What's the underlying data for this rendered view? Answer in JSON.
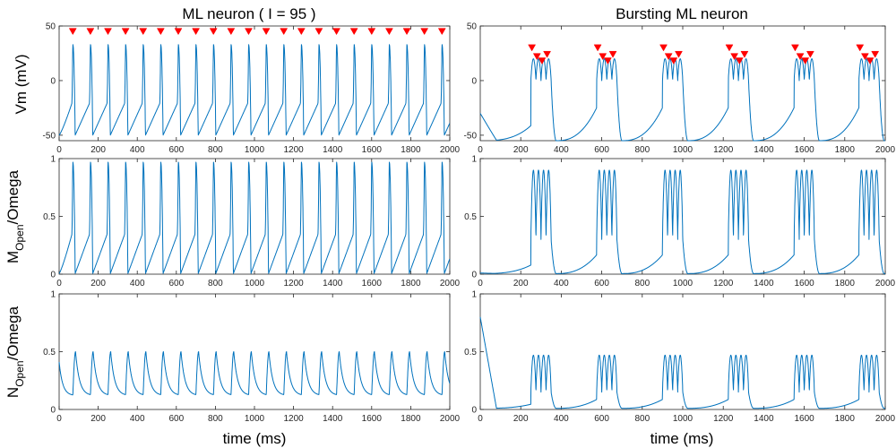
{
  "colors": {
    "trace": "#0072BD",
    "spike_marker": "#FF0000",
    "axes": "#262626"
  },
  "columns": [
    {
      "title": "ML neuron ( I = 95 )"
    },
    {
      "title": "Bursting ML neuron"
    }
  ],
  "rows": [
    {
      "ylabel": "Vm (mV)"
    },
    {
      "ylabel_main": "M",
      "ylabel_sub": "Open",
      "ylabel_suffix": "/Omega"
    },
    {
      "ylabel_main": "N",
      "ylabel_sub": "Open",
      "ylabel_suffix": "/Omega"
    }
  ],
  "xlabel": "time (ms)",
  "chart_data": [
    {
      "id": "vm-regular",
      "type": "line",
      "row": 0,
      "col": 0,
      "title": "ML neuron ( I = 95 )",
      "xlabel": "",
      "ylabel": "Vm (mV)",
      "xlim": [
        0,
        2000
      ],
      "ylim": [
        -55,
        50
      ],
      "xticks": [
        0,
        200,
        400,
        600,
        800,
        1000,
        1200,
        1400,
        1600,
        1800,
        2000
      ],
      "yticks": [
        -50,
        0,
        50
      ],
      "series": [
        {
          "model": "regular",
          "resting": -50,
          "peak": 33,
          "spike_times": [
            70,
            160,
            250,
            340,
            430,
            520,
            610,
            700,
            790,
            880,
            970,
            1060,
            1150,
            1240,
            1330,
            1420,
            1510,
            1600,
            1690,
            1780,
            1870,
            1960
          ]
        }
      ],
      "markers": {
        "shape": "triangle-down",
        "y": 45,
        "x": [
          70,
          160,
          250,
          340,
          430,
          520,
          610,
          700,
          790,
          880,
          970,
          1060,
          1150,
          1240,
          1330,
          1420,
          1510,
          1600,
          1690,
          1780,
          1870,
          1960
        ]
      }
    },
    {
      "id": "vm-bursting",
      "type": "line",
      "row": 0,
      "col": 1,
      "title": "Bursting ML neuron",
      "xlabel": "",
      "ylabel": "",
      "xlim": [
        0,
        2000
      ],
      "ylim": [
        -55,
        50
      ],
      "xticks": [
        0,
        200,
        400,
        600,
        800,
        1000,
        1200,
        1400,
        1600,
        1800,
        2000
      ],
      "yticks": [
        -50,
        0,
        50
      ],
      "series": [
        {
          "model": "burst",
          "initial": -30,
          "trough": -55,
          "plateau": 0,
          "peak": 20,
          "burst_starts": [
            250,
            575,
            900,
            1225,
            1550,
            1870
          ],
          "spikes_per_burst": 4,
          "burst_duration": 100
        }
      ],
      "markers": {
        "shape": "triangle-down",
        "points": [
          [
            255,
            30
          ],
          [
            280,
            22
          ],
          [
            305,
            18
          ],
          [
            330,
            24
          ],
          [
            580,
            30
          ],
          [
            605,
            22
          ],
          [
            630,
            18
          ],
          [
            655,
            24
          ],
          [
            905,
            30
          ],
          [
            930,
            22
          ],
          [
            955,
            18
          ],
          [
            980,
            24
          ],
          [
            1230,
            30
          ],
          [
            1255,
            22
          ],
          [
            1280,
            18
          ],
          [
            1305,
            24
          ],
          [
            1555,
            30
          ],
          [
            1580,
            22
          ],
          [
            1605,
            18
          ],
          [
            1630,
            24
          ],
          [
            1875,
            30
          ],
          [
            1900,
            22
          ],
          [
            1925,
            18
          ],
          [
            1950,
            24
          ]
        ]
      }
    },
    {
      "id": "m-regular",
      "type": "line",
      "row": 1,
      "col": 0,
      "title": "",
      "xlabel": "",
      "ylabel": "MOpen/Omega",
      "xlim": [
        0,
        2000
      ],
      "ylim": [
        0,
        1
      ],
      "xticks": [
        0,
        200,
        400,
        600,
        800,
        1000,
        1200,
        1400,
        1600,
        1800,
        2000
      ],
      "yticks": [
        0,
        0.5,
        1
      ],
      "series": [
        {
          "model": "regular",
          "resting": 0.005,
          "peak": 0.97,
          "spike_times": [
            70,
            160,
            250,
            340,
            430,
            520,
            610,
            700,
            790,
            880,
            970,
            1060,
            1150,
            1240,
            1330,
            1420,
            1510,
            1600,
            1690,
            1780,
            1870,
            1960
          ]
        }
      ]
    },
    {
      "id": "m-bursting",
      "type": "line",
      "row": 1,
      "col": 1,
      "title": "",
      "xlabel": "",
      "ylabel": "",
      "xlim": [
        0,
        2000
      ],
      "ylim": [
        0,
        1
      ],
      "xticks": [
        0,
        200,
        400,
        600,
        800,
        1000,
        1200,
        1400,
        1600,
        1800,
        2000
      ],
      "yticks": [
        0,
        0.5,
        1
      ],
      "series": [
        {
          "model": "burst",
          "initial": 0.01,
          "trough": 0.005,
          "plateau": 0.3,
          "peak": 0.9,
          "burst_starts": [
            250,
            575,
            900,
            1225,
            1550,
            1870
          ],
          "spikes_per_burst": 4,
          "burst_duration": 100
        }
      ]
    },
    {
      "id": "n-regular",
      "type": "line",
      "row": 2,
      "col": 0,
      "title": "",
      "xlabel": "time (ms)",
      "ylabel": "NOpen/Omega",
      "xlim": [
        0,
        2000
      ],
      "ylim": [
        0,
        1
      ],
      "xticks": [
        0,
        200,
        400,
        600,
        800,
        1000,
        1200,
        1400,
        1600,
        1800,
        2000
      ],
      "yticks": [
        0,
        0.5,
        1
      ],
      "series": [
        {
          "model": "n-regular",
          "trough": 0.12,
          "peak": 0.5,
          "initial": 0.41,
          "spike_times": [
            70,
            160,
            250,
            340,
            430,
            520,
            610,
            700,
            790,
            880,
            970,
            1060,
            1150,
            1240,
            1330,
            1420,
            1510,
            1600,
            1690,
            1780,
            1870,
            1960
          ]
        }
      ]
    },
    {
      "id": "n-bursting",
      "type": "line",
      "row": 2,
      "col": 1,
      "title": "",
      "xlabel": "time (ms)",
      "ylabel": "",
      "xlim": [
        0,
        2000
      ],
      "ylim": [
        0,
        1
      ],
      "xticks": [
        0,
        200,
        400,
        600,
        800,
        1000,
        1200,
        1400,
        1600,
        1800,
        2000
      ],
      "yticks": [
        0,
        0.5,
        1
      ],
      "series": [
        {
          "model": "burst",
          "initial": 0.8,
          "trough": 0.01,
          "plateau": 0.15,
          "peak": 0.47,
          "burst_starts": [
            250,
            575,
            900,
            1225,
            1550,
            1870
          ],
          "spikes_per_burst": 4,
          "burst_duration": 100
        }
      ]
    }
  ]
}
